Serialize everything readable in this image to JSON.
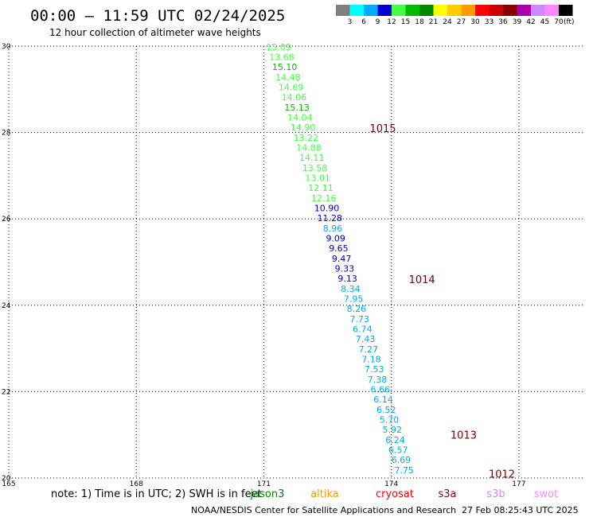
{
  "header": {
    "title": "00:00 – 11:59 UTC 02/24/2025",
    "subtitle": "12 hour collection of altimeter wave heights"
  },
  "legend": {
    "labels": [
      "3",
      "6",
      "9",
      "12",
      "15",
      "18",
      "21",
      "24",
      "27",
      "30",
      "33",
      "36",
      "39",
      "42",
      "45",
      "70"
    ],
    "unit": "(ft)",
    "colors": [
      "#808080",
      "#00ffff",
      "#00aaff",
      "#0000cc",
      "#44ff44",
      "#00bb00",
      "#008800",
      "#ffff00",
      "#ffcc00",
      "#ff9900",
      "#ff0000",
      "#cc0000",
      "#880000",
      "#aa00aa",
      "#cc88ff",
      "#ff88ff",
      "#000000"
    ]
  },
  "chart_data": {
    "type": "scatter",
    "xlim": [
      165,
      178.5
    ],
    "ylim": [
      20,
      30
    ],
    "x_ticks": [
      "165",
      "168",
      "171",
      "174",
      "177"
    ],
    "y_ticks": [
      "20",
      "22",
      "24",
      "26",
      "28",
      "30"
    ],
    "y_tick_values": [
      20,
      22,
      24,
      26,
      28,
      30
    ],
    "x_tick_values": [
      165,
      168,
      171,
      174,
      177
    ],
    "grid": true,
    "points": [
      {
        "x": 171.35,
        "y": 29.98,
        "label": "15.09",
        "color": "#44ff44"
      },
      {
        "x": 171.42,
        "y": 29.75,
        "label": "13.68",
        "color": "#44ff44"
      },
      {
        "x": 171.49,
        "y": 29.52,
        "label": "15.10",
        "color": "#00bb00"
      },
      {
        "x": 171.57,
        "y": 29.28,
        "label": "14.48",
        "color": "#44ff44"
      },
      {
        "x": 171.64,
        "y": 29.05,
        "label": "14.69",
        "color": "#44ff44"
      },
      {
        "x": 171.71,
        "y": 28.82,
        "label": "14.06",
        "color": "#44ff44"
      },
      {
        "x": 171.78,
        "y": 28.58,
        "label": "15.13",
        "color": "#00bb00"
      },
      {
        "x": 171.85,
        "y": 28.35,
        "label": "14.04",
        "color": "#44ff44"
      },
      {
        "x": 171.92,
        "y": 28.12,
        "label": "14.90",
        "color": "#44ff44"
      },
      {
        "x": 171.99,
        "y": 27.88,
        "label": "13.22",
        "color": "#44ff44"
      },
      {
        "x": 172.06,
        "y": 27.65,
        "label": "14.88",
        "color": "#44ff44"
      },
      {
        "x": 172.13,
        "y": 27.42,
        "label": "14.11",
        "color": "#44ff44"
      },
      {
        "x": 172.2,
        "y": 27.18,
        "label": "13.58",
        "color": "#44ff44"
      },
      {
        "x": 172.27,
        "y": 26.95,
        "label": "13.01",
        "color": "#44ff44"
      },
      {
        "x": 172.34,
        "y": 26.72,
        "label": "12.11",
        "color": "#44ff44"
      },
      {
        "x": 172.41,
        "y": 26.48,
        "label": "12.16",
        "color": "#44ff44"
      },
      {
        "x": 172.48,
        "y": 26.25,
        "label": "10.90",
        "color": "#0000cc"
      },
      {
        "x": 172.55,
        "y": 26.02,
        "label": "11.28",
        "color": "#0000cc"
      },
      {
        "x": 172.62,
        "y": 25.78,
        "label": "8.96",
        "color": "#00aaff"
      },
      {
        "x": 172.69,
        "y": 25.55,
        "label": "9.09",
        "color": "#0000cc"
      },
      {
        "x": 172.76,
        "y": 25.32,
        "label": "9.65",
        "color": "#0000cc"
      },
      {
        "x": 172.83,
        "y": 25.08,
        "label": "9.47",
        "color": "#0000cc"
      },
      {
        "x": 172.9,
        "y": 24.85,
        "label": "9.33",
        "color": "#0000cc"
      },
      {
        "x": 172.97,
        "y": 24.62,
        "label": "9.13",
        "color": "#0000cc"
      },
      {
        "x": 173.04,
        "y": 24.38,
        "label": "8.34",
        "color": "#00aaff"
      },
      {
        "x": 173.11,
        "y": 24.15,
        "label": "7.95",
        "color": "#00aaff"
      },
      {
        "x": 173.18,
        "y": 23.92,
        "label": "8.26",
        "color": "#00aaff"
      },
      {
        "x": 173.25,
        "y": 23.68,
        "label": "7.73",
        "color": "#00aaff"
      },
      {
        "x": 173.32,
        "y": 23.45,
        "label": "6.74",
        "color": "#00aaff"
      },
      {
        "x": 173.39,
        "y": 23.22,
        "label": "7.43",
        "color": "#00aaff"
      },
      {
        "x": 173.46,
        "y": 22.98,
        "label": "7.27",
        "color": "#00aaff"
      },
      {
        "x": 173.53,
        "y": 22.75,
        "label": "7.18",
        "color": "#00aaff"
      },
      {
        "x": 173.6,
        "y": 22.52,
        "label": "7.53",
        "color": "#00aaff"
      },
      {
        "x": 173.67,
        "y": 22.28,
        "label": "7.38",
        "color": "#00aaff"
      },
      {
        "x": 173.74,
        "y": 22.05,
        "label": "6.66",
        "color": "#00aaff"
      },
      {
        "x": 173.81,
        "y": 21.82,
        "label": "6.14",
        "color": "#00aaff"
      },
      {
        "x": 173.88,
        "y": 21.58,
        "label": "6.52",
        "color": "#00aaff"
      },
      {
        "x": 173.95,
        "y": 21.35,
        "label": "5.70",
        "color": "#00aaff"
      },
      {
        "x": 174.02,
        "y": 21.12,
        "label": "5.92",
        "color": "#00aaff"
      },
      {
        "x": 174.09,
        "y": 20.88,
        "label": "6.24",
        "color": "#00aaff"
      },
      {
        "x": 174.16,
        "y": 20.65,
        "label": "6.57",
        "color": "#00aaff"
      },
      {
        "x": 174.23,
        "y": 20.42,
        "label": "6.69",
        "color": "#00aaff"
      },
      {
        "x": 174.3,
        "y": 20.18,
        "label": "7.75",
        "color": "#00aaff"
      }
    ],
    "pressure_labels": [
      {
        "x": 173.8,
        "y": 28.1,
        "label": "1015"
      },
      {
        "x": 174.72,
        "y": 24.6,
        "label": "1014"
      },
      {
        "x": 175.7,
        "y": 21.0,
        "label": "1013"
      },
      {
        "x": 176.6,
        "y": 20.1,
        "label": "1012"
      }
    ]
  },
  "footer": {
    "note": "note:  1) Time is in UTC;  2) SWH is in feet",
    "satellites": [
      {
        "name": "jason3",
        "color": "#008800"
      },
      {
        "name": "altika",
        "color": "#ff9900"
      },
      {
        "name": "cryosat",
        "color": "#ff0000"
      },
      {
        "name": "s3a",
        "color": "#880000"
      },
      {
        "name": "s3b",
        "color": "#cc88ff"
      },
      {
        "name": "swot",
        "color": "#ff88ff"
      }
    ],
    "credit": "NOAA/NESDIS Center for Satellite Applications and Research",
    "timestamp": "27 Feb 08:25:43 UTC 2025"
  }
}
